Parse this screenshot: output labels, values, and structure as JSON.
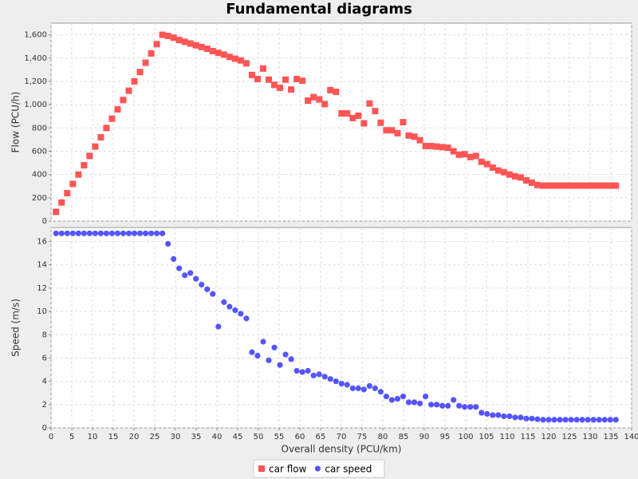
{
  "chart_data": {
    "type": "scatter",
    "title": "Fundamental diagrams",
    "xlabel": "Overall density (PCU/km)",
    "grid": true,
    "legend": "bottom",
    "xlim": [
      0,
      140
    ],
    "xticks": [
      0,
      5,
      10,
      15,
      20,
      25,
      30,
      35,
      40,
      45,
      50,
      55,
      60,
      65,
      70,
      75,
      80,
      85,
      90,
      95,
      100,
      105,
      110,
      115,
      120,
      125,
      130,
      135,
      140
    ],
    "x": [
      1.2,
      2.55,
      3.9,
      5.25,
      6.6,
      7.95,
      9.3,
      10.65,
      12,
      13.35,
      14.7,
      16.05,
      17.4,
      18.75,
      20.1,
      21.45,
      22.8,
      24.15,
      25.5,
      26.85,
      28.2,
      29.55,
      30.9,
      32.25,
      33.6,
      34.95,
      36.3,
      37.65,
      39,
      40.35,
      41.7,
      43.05,
      44.4,
      45.75,
      47.1,
      48.45,
      49.8,
      51.15,
      52.5,
      53.85,
      55.2,
      56.55,
      57.9,
      59.25,
      60.6,
      61.95,
      63.3,
      64.65,
      66,
      67.35,
      68.7,
      70.05,
      71.4,
      72.75,
      74.1,
      75.45,
      76.8,
      78.15,
      79.5,
      80.85,
      82.2,
      83.55,
      84.9,
      86.25,
      87.6,
      88.95,
      90.3,
      91.65,
      93,
      94.35,
      95.7,
      97.05,
      98.4,
      99.75,
      101.1,
      102.45,
      103.8,
      105.15,
      106.5,
      107.85,
      109.2,
      110.55,
      111.9,
      113.25,
      114.6,
      115.95,
      117.3,
      118.65,
      120,
      121.35,
      122.7,
      124.05,
      125.4,
      126.75,
      128.1,
      129.45,
      130.8,
      132.15,
      133.5,
      134.85,
      136.2
    ],
    "panels": [
      {
        "ylabel": "Flow (PCU/h)",
        "ylim": [
          0,
          1700
        ],
        "yticks": [
          0,
          200,
          400,
          600,
          800,
          {
            "value": 1000,
            "label": "1,000"
          },
          {
            "value": 1200,
            "label": "1,200"
          },
          {
            "value": 1400,
            "label": "1,400"
          },
          {
            "value": 1600,
            "label": "1,600"
          }
        ],
        "series": [
          {
            "name": "car flow",
            "color": "#ff5555",
            "marker": "square",
            "values": [
              80,
              160,
              240,
              320,
              400,
              480,
              560,
              640,
              720,
              800,
              880,
              960,
              1040,
              1120,
              1200,
              1280,
              1360,
              1440,
              1520,
              1600,
              1590,
              1575,
              1555,
              1540,
              1525,
              1510,
              1495,
              1480,
              1460,
              1445,
              1430,
              1410,
              1395,
              1380,
              1355,
              1255,
              1220,
              1310,
              1215,
              1170,
              1145,
              1215,
              1130,
              1220,
              1205,
              1035,
              1065,
              1045,
              1005,
              1125,
              1110,
              925,
              925,
              885,
              905,
              840,
              1010,
              945,
              845,
              780,
              780,
              755,
              850,
              735,
              725,
              695,
              645,
              645,
              640,
              635,
              630,
              600,
              570,
              575,
              550,
              560,
              510,
              490,
              460,
              435,
              420,
              400,
              385,
              375,
              350,
              330,
              310,
              305,
              305,
              305,
              305,
              305,
              305,
              305,
              305,
              305,
              305,
              305,
              305,
              305,
              305
            ]
          }
        ]
      },
      {
        "ylabel": "Speed (m/s)",
        "ylim": [
          0,
          17.2
        ],
        "yticks": [
          0,
          2,
          4,
          6,
          8,
          10,
          12,
          14,
          16
        ],
        "series": [
          {
            "name": "car speed",
            "color": "#5555ff",
            "marker": "circle",
            "values": [
              16.7,
              16.7,
              16.7,
              16.7,
              16.7,
              16.7,
              16.7,
              16.7,
              16.7,
              16.7,
              16.7,
              16.7,
              16.7,
              16.7,
              16.7,
              16.7,
              16.7,
              16.7,
              16.7,
              16.7,
              15.8,
              14.5,
              13.7,
              13.1,
              13.3,
              12.8,
              12.3,
              11.9,
              11.5,
              8.7,
              10.8,
              10.4,
              10.1,
              9.8,
              9.4,
              6.5,
              6.2,
              7.4,
              5.8,
              6.9,
              5.4,
              6.3,
              5.9,
              4.9,
              4.8,
              4.9,
              4.5,
              4.6,
              4.4,
              4.2,
              4.0,
              3.8,
              3.7,
              3.4,
              3.4,
              3.3,
              3.6,
              3.4,
              3.1,
              2.7,
              2.4,
              2.5,
              2.7,
              2.2,
              2.2,
              2.1,
              2.7,
              2.0,
              2.0,
              1.9,
              1.9,
              2.4,
              1.9,
              1.8,
              1.8,
              1.8,
              1.3,
              1.2,
              1.1,
              1.1,
              1.0,
              1.0,
              0.9,
              0.9,
              0.8,
              0.8,
              0.75,
              0.7,
              0.7,
              0.7,
              0.7,
              0.7,
              0.7,
              0.7,
              0.7,
              0.7,
              0.7,
              0.7,
              0.7,
              0.7,
              0.7
            ]
          }
        ]
      }
    ]
  }
}
